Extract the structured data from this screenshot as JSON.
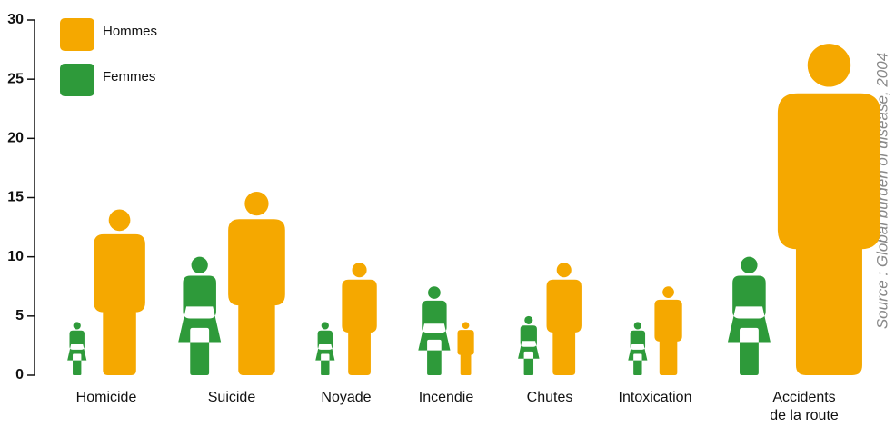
{
  "chart_data": {
    "type": "pictogram",
    "categories": [
      "Homicide",
      "Suicide",
      "Noyade",
      "Incendie",
      "Chutes",
      "Intoxication",
      "Accidents\nde la route"
    ],
    "series": [
      {
        "name": "Femmes",
        "color": "#2e9a3a",
        "values": [
          4.5,
          10,
          4.5,
          7.5,
          5,
          4.5,
          10
        ]
      },
      {
        "name": "Hommes",
        "color": "#f5a800",
        "values": [
          14,
          15.5,
          9.5,
          4.5,
          9.5,
          7.5,
          28
        ]
      }
    ],
    "ylim": [
      0,
      30
    ],
    "yticks": [
      0,
      5,
      10,
      15,
      20,
      25,
      30
    ],
    "source": "Source : Global burden of disease, 2004",
    "legend": "top-left"
  }
}
